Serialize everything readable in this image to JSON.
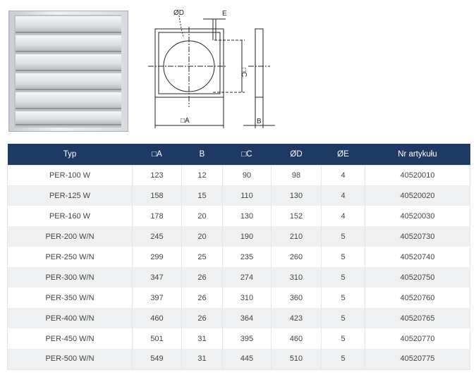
{
  "drawing_labels": {
    "d": "ØD",
    "e": "E",
    "c": "□C",
    "a": "□A",
    "b": "B"
  },
  "table": {
    "headers": [
      "Typ",
      "□A",
      "B",
      "□C",
      "ØD",
      "ØE",
      "Nr artykułu"
    ],
    "rows": [
      [
        "PER-100 W",
        "123",
        "12",
        "90",
        "98",
        "4",
        "40520010"
      ],
      [
        "PER-125 W",
        "158",
        "15",
        "110",
        "130",
        "4",
        "40520020"
      ],
      [
        "PER-160 W",
        "178",
        "20",
        "130",
        "152",
        "4",
        "40520030"
      ],
      [
        "PER-200 W/N",
        "245",
        "20",
        "190",
        "210",
        "5",
        "40520730"
      ],
      [
        "PER-250 W/N",
        "299",
        "25",
        "235",
        "260",
        "5",
        "40520740"
      ],
      [
        "PER-300 W/N",
        "347",
        "26",
        "274",
        "310",
        "5",
        "40520750"
      ],
      [
        "PER-350 W/N",
        "397",
        "26",
        "310",
        "360",
        "5",
        "40520760"
      ],
      [
        "PER-400 W/N",
        "460",
        "26",
        "364",
        "423",
        "5",
        "40520765"
      ],
      [
        "PER-450 W/N",
        "501",
        "31",
        "395",
        "460",
        "5",
        "40520770"
      ],
      [
        "PER-500 W/N",
        "549",
        "31",
        "445",
        "510",
        "5",
        "40520775"
      ]
    ]
  },
  "colors": {
    "header_bg": "#1f3a62",
    "row_alt": "#eef0f1"
  }
}
